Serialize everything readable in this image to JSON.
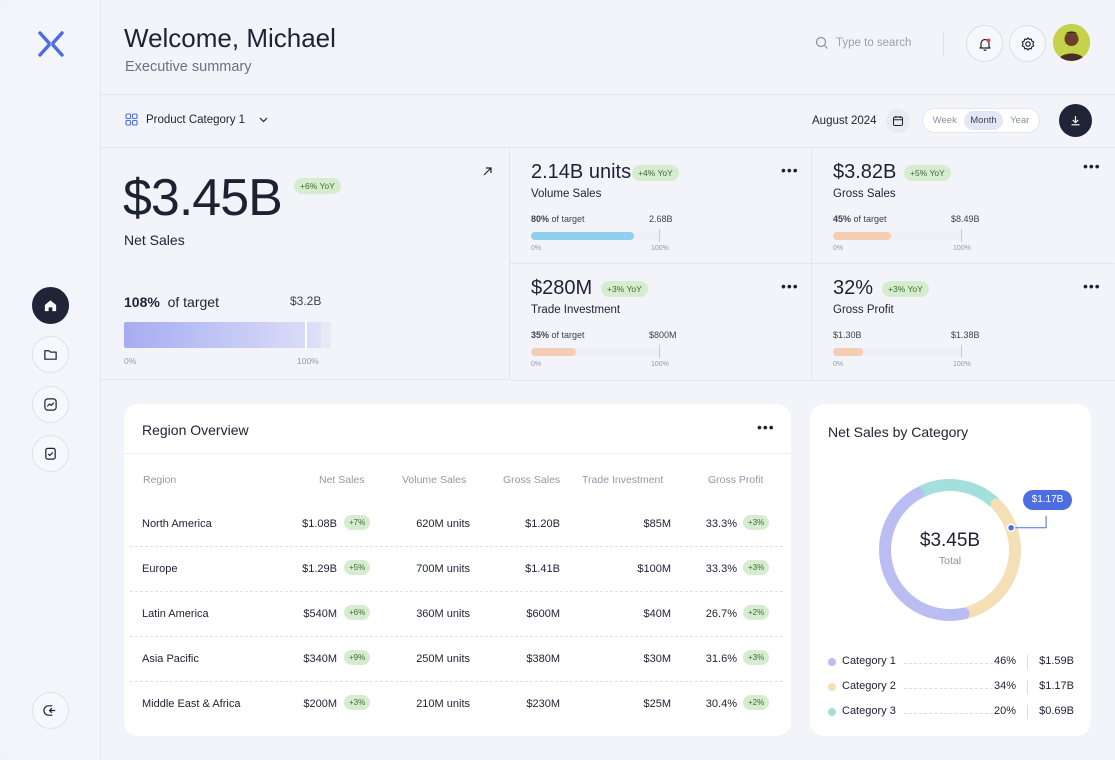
{
  "header": {
    "welcome": "Welcome, Michael",
    "subtitle": "Executive summary",
    "search_placeholder": "Type to search"
  },
  "toolbar": {
    "category": "Product Category 1",
    "period": "August 2024",
    "segments": [
      "Week",
      "Month",
      "Year"
    ],
    "active_segment": "Month"
  },
  "net_sales": {
    "value": "$3.45B",
    "yoy": "+6% YoY",
    "label": "Net Sales",
    "target_pct": "108%",
    "target_text": "of target",
    "target_amount": "$3.2B",
    "progress": 1.08,
    "axis_start": "0%",
    "axis_end": "100%"
  },
  "kpis": [
    {
      "value": "2.14B units",
      "yoy": "+4% YoY",
      "name": "Volume Sales",
      "pct": "80%",
      "pct_text": "of target",
      "amount": "2.68B",
      "progress": 0.8,
      "color": "#8fd0ee",
      "axis_start": "0%",
      "axis_end": "100%"
    },
    {
      "value": "$3.82B",
      "yoy": "+5% YoY",
      "name": "Gross Sales",
      "pct": "45%",
      "pct_text": "of target",
      "amount": "$8.49B",
      "progress": 0.45,
      "color": "#f5cdb5",
      "axis_start": "0%",
      "axis_end": "100%"
    },
    {
      "value": "$280M",
      "yoy": "+3% YoY",
      "name": "Trade Investment",
      "pct": "35%",
      "pct_text": "of target",
      "amount": "$800M",
      "progress": 0.35,
      "color": "#f5cdb5",
      "axis_start": "0%",
      "axis_end": "100%"
    },
    {
      "value": "32%",
      "yoy": "+3% YoY",
      "name": "Gross Profit",
      "pct": "$1.30B",
      "pct_text": "",
      "amount": "$1.38B",
      "progress": 0.23,
      "color": "#f5cdb5",
      "axis_start": "0%",
      "axis_end": "100%"
    }
  ],
  "region": {
    "title": "Region Overview",
    "columns": [
      "Region",
      "Net Sales",
      "Volume Sales",
      "Gross Sales",
      "Trade Investment",
      "Gross Profit"
    ],
    "rows": [
      {
        "region": "North America",
        "net": "$1.08B",
        "net_chg": "+7%",
        "volume": "620M units",
        "gross": "$1.20B",
        "trade": "$85M",
        "profit": "33.3%",
        "profit_chg": "+3%"
      },
      {
        "region": "Europe",
        "net": "$1.29B",
        "net_chg": "+5%",
        "volume": "700M units",
        "gross": "$1.41B",
        "trade": "$100M",
        "profit": "33.3%",
        "profit_chg": "+3%"
      },
      {
        "region": "Latin America",
        "net": "$540M",
        "net_chg": "+6%",
        "volume": "360M units",
        "gross": "$600M",
        "trade": "$40M",
        "profit": "26.7%",
        "profit_chg": "+2%"
      },
      {
        "region": "Asia Pacific",
        "net": "$340M",
        "net_chg": "+9%",
        "volume": "250M units",
        "gross": "$380M",
        "trade": "$30M",
        "profit": "31.6%",
        "profit_chg": "+3%"
      },
      {
        "region": "Middle East & Africa",
        "net": "$200M",
        "net_chg": "+3%",
        "volume": "210M units",
        "gross": "$230M",
        "trade": "$25M",
        "profit": "30.4%",
        "profit_chg": "+2%"
      }
    ]
  },
  "donut": {
    "title": "Net Sales by Category",
    "center_value": "$3.45B",
    "center_label": "Total",
    "callout": "$1.17B",
    "categories": [
      {
        "name": "Category 1",
        "pct": "46%",
        "amount": "$1.59B",
        "share": 0.46,
        "color": "#babdf2"
      },
      {
        "name": "Category 2",
        "pct": "34%",
        "amount": "$1.17B",
        "share": 0.34,
        "color": "#f4dfb7"
      },
      {
        "name": "Category 3",
        "pct": "20%",
        "amount": "$0.69B",
        "share": 0.2,
        "color": "#a3dfdb"
      }
    ]
  },
  "icons": {
    "logo": "x-logo-icon",
    "nav": [
      "home-icon",
      "folder-icon",
      "chart-line-icon",
      "clipboard-check-icon",
      "logout-icon"
    ],
    "header": [
      "search-icon",
      "bell-icon",
      "gear-icon"
    ],
    "toolbar": [
      "grid-icon",
      "chevron-down-icon",
      "calendar-icon",
      "download-icon"
    ]
  }
}
